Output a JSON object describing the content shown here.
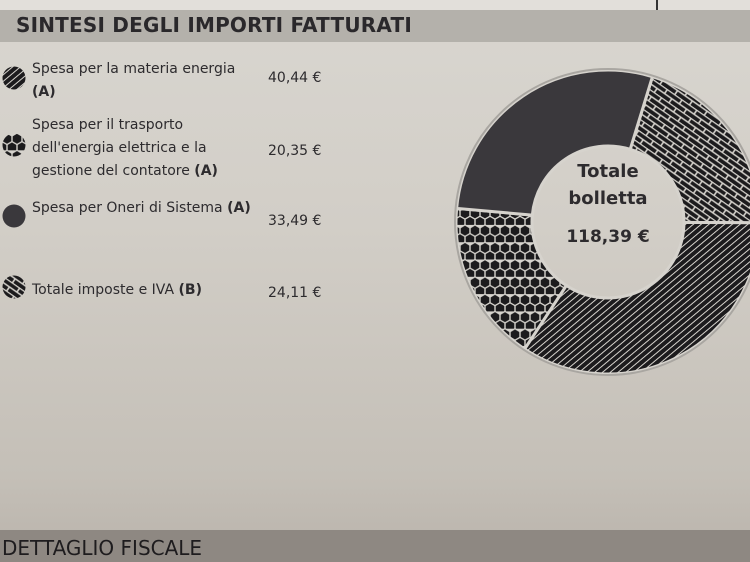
{
  "header": {
    "title": "SINTESI DEGLI IMPORTI FATTURATI"
  },
  "footer": {
    "title": "DETTAGLIO FISCALE"
  },
  "chart_data": {
    "type": "pie",
    "donut": true,
    "start_angle_deg": 17,
    "center_label": {
      "line1": "Totale",
      "line2": "bolletta",
      "total": "118,39 €"
    },
    "total": 118.39,
    "series": [
      {
        "key": "taxes",
        "label_text": "Totale imposte e IVA",
        "label_suffix": "(B)",
        "value": 24.11,
        "value_text": "24,11 €",
        "pattern": "brick"
      },
      {
        "key": "energy",
        "label_text": "Spesa per la materia energia",
        "label_suffix": "(A)",
        "value": 40.44,
        "value_text": "40,44 €",
        "pattern": "diagonal-stripes"
      },
      {
        "key": "transport",
        "label_text": "Spesa per il trasporto dell'energia elettrica e la gestione del contatore",
        "label_suffix": "(A)",
        "value": 20.35,
        "value_text": "20,35 €",
        "pattern": "hexagon"
      },
      {
        "key": "system",
        "label_text": "Spesa per Oneri di Sistema",
        "label_suffix": "(A)",
        "value": 33.49,
        "value_text": "33,49 €",
        "pattern": "solid"
      }
    ],
    "legend_order": [
      "energy",
      "transport",
      "system",
      "taxes"
    ],
    "legend_placement": "left",
    "colors": {
      "fill": "#3a383c",
      "line": "#d6d3cd",
      "paper": "#d2cec7"
    }
  }
}
